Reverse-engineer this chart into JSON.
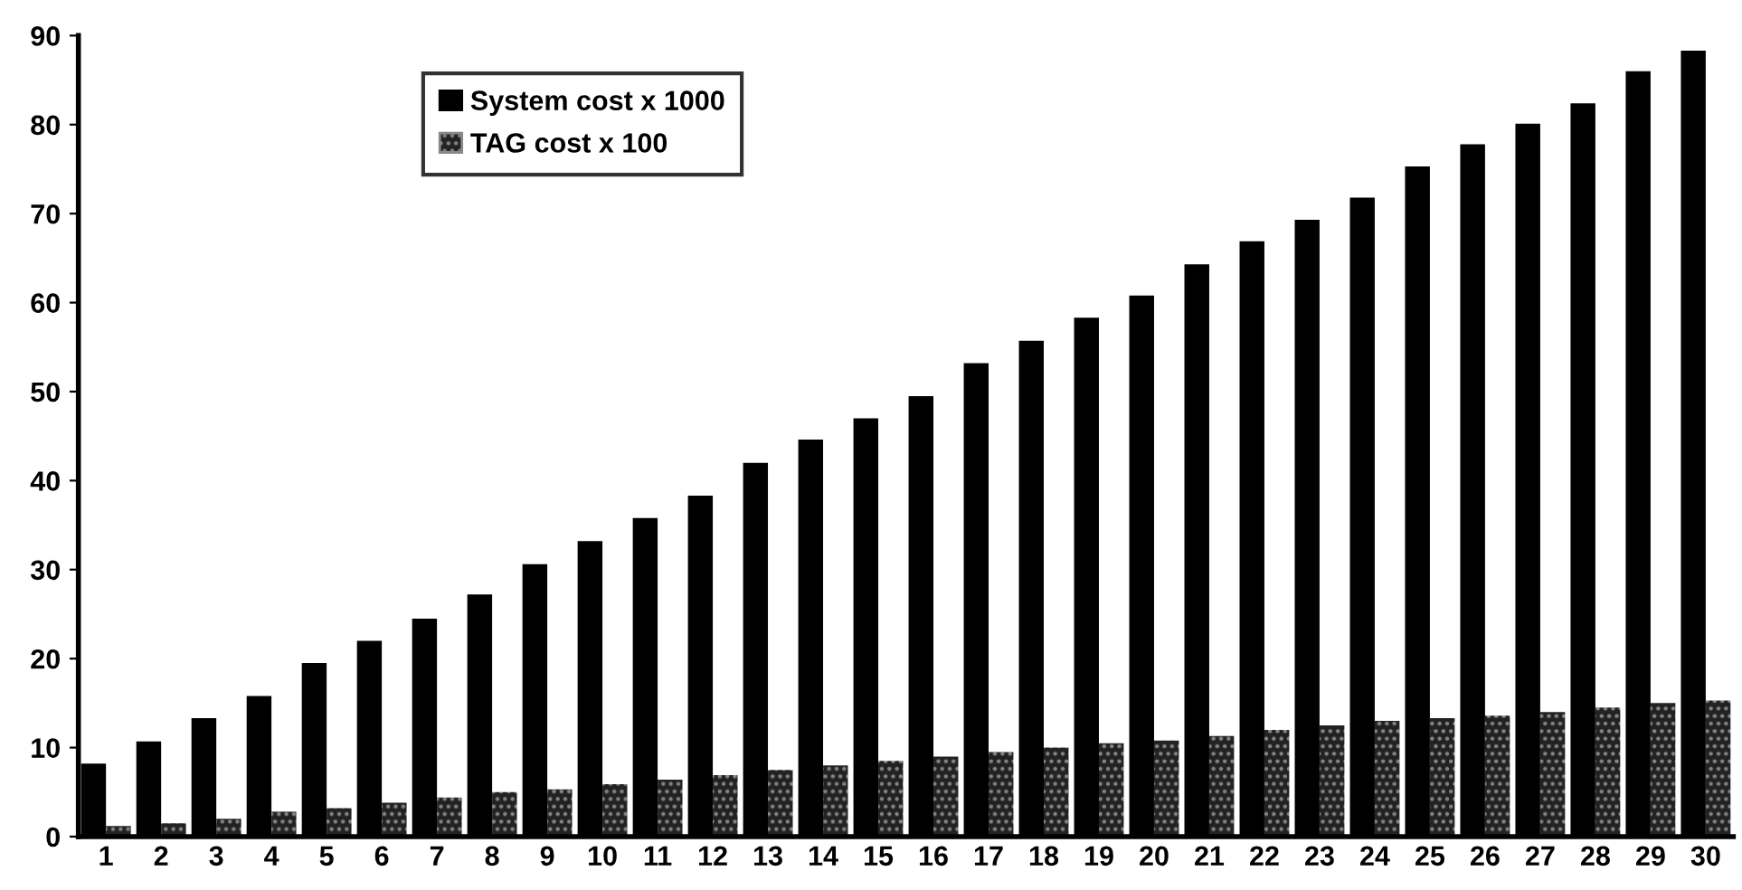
{
  "chart_data": {
    "type": "bar",
    "categories": [
      "1",
      "2",
      "3",
      "4",
      "5",
      "6",
      "7",
      "8",
      "9",
      "10",
      "11",
      "12",
      "13",
      "14",
      "15",
      "16",
      "17",
      "18",
      "19",
      "20",
      "21",
      "22",
      "23",
      "24",
      "25",
      "26",
      "27",
      "28",
      "29",
      "30"
    ],
    "series": [
      {
        "name": "System cost x 1000",
        "color": "#000000",
        "values": [
          8.2,
          10.7,
          13.3,
          15.8,
          19.5,
          22,
          24.5,
          27.2,
          30.6,
          33.2,
          35.8,
          38.3,
          42,
          44.6,
          47,
          49.5,
          53.2,
          55.7,
          58.3,
          60.8,
          64.3,
          66.9,
          69.3,
          71.8,
          75.3,
          77.8,
          80.1,
          82.4,
          86,
          88.3
        ]
      },
      {
        "name": "TAG cost x 100",
        "color": "#222222",
        "values": [
          1.2,
          1.5,
          2,
          2.8,
          3.2,
          3.8,
          4.4,
          5,
          5.3,
          5.9,
          6.4,
          6.9,
          7.5,
          8,
          8.5,
          9,
          9.5,
          10,
          10.5,
          10.8,
          11.3,
          12,
          12.5,
          13,
          13.3,
          13.6,
          14,
          14.5,
          15,
          15.3
        ]
      }
    ],
    "ylim": [
      0,
      90
    ],
    "yticks": [
      0,
      10,
      20,
      30,
      40,
      50,
      60,
      70,
      80,
      90
    ],
    "grid": false,
    "legend": "top left"
  }
}
